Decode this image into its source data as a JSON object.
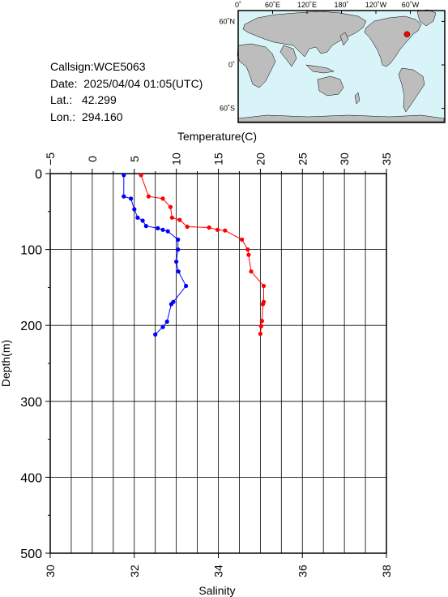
{
  "info": {
    "callsign_label": "Callsign:",
    "callsign": "WCE5063",
    "date_label": "Date:",
    "date": "2025/04/04 01:05(UTC)",
    "lat_label": "Lat.:",
    "lat": "42.299",
    "lon_label": "Lon.:",
    "lon": "294.160"
  },
  "map": {
    "lon_ticks": [
      "0˚",
      "60˚E",
      "120˚E",
      "180˚",
      "120˚W",
      "60˚W"
    ],
    "lat_ticks": [
      "60˚N",
      "0˚",
      "60˚S"
    ],
    "ocean_color": "#d8f4f8",
    "land_color": "#bdbdbd",
    "station_marker_color": "#ff0000",
    "station_lon": 294.16,
    "station_lat": 42.299
  },
  "chart_data": {
    "type": "line",
    "top_axis": {
      "label": "Temperature(C)",
      "range": [
        -5,
        35
      ],
      "ticks": [
        "−5",
        "0",
        "5",
        "10",
        "15",
        "20",
        "25",
        "30",
        "35"
      ]
    },
    "bottom_axis": {
      "label": "Salinity",
      "range": [
        30,
        38
      ],
      "ticks": [
        "30",
        "32",
        "34",
        "36",
        "38"
      ]
    },
    "y_axis": {
      "label": "Depth(m)",
      "range": [
        0,
        500
      ],
      "inverted": true,
      "ticks": [
        "0",
        "100",
        "200",
        "300",
        "400",
        "500"
      ]
    },
    "grid": true,
    "series": [
      {
        "color": "#ff0000",
        "axis": "temperature",
        "points": [
          [
            5.8,
            2
          ],
          [
            6.7,
            30
          ],
          [
            8.4,
            33
          ],
          [
            9.3,
            44
          ],
          [
            9.5,
            58
          ],
          [
            10.4,
            61
          ],
          [
            11.3,
            70
          ],
          [
            13.9,
            71
          ],
          [
            14.9,
            74
          ],
          [
            15.8,
            75
          ],
          [
            17.8,
            87
          ],
          [
            18.5,
            100
          ],
          [
            18.6,
            107
          ],
          [
            18.9,
            129
          ],
          [
            20.4,
            148
          ],
          [
            20.4,
            169
          ],
          [
            20.3,
            172
          ],
          [
            20.2,
            194
          ],
          [
            20.1,
            201
          ],
          [
            20.0,
            211
          ]
        ]
      },
      {
        "color": "#0000ff",
        "axis": "salinity",
        "points": [
          [
            31.75,
            2
          ],
          [
            31.75,
            30
          ],
          [
            31.92,
            33
          ],
          [
            32.0,
            47
          ],
          [
            32.08,
            58
          ],
          [
            32.2,
            62
          ],
          [
            32.28,
            69
          ],
          [
            32.56,
            72
          ],
          [
            32.68,
            74
          ],
          [
            32.8,
            76
          ],
          [
            33.04,
            87
          ],
          [
            33.04,
            100
          ],
          [
            33.0,
            116
          ],
          [
            33.05,
            129
          ],
          [
            33.23,
            148
          ],
          [
            32.93,
            169
          ],
          [
            32.88,
            172
          ],
          [
            32.78,
            195
          ],
          [
            32.68,
            202
          ],
          [
            32.5,
            212
          ]
        ]
      }
    ]
  }
}
